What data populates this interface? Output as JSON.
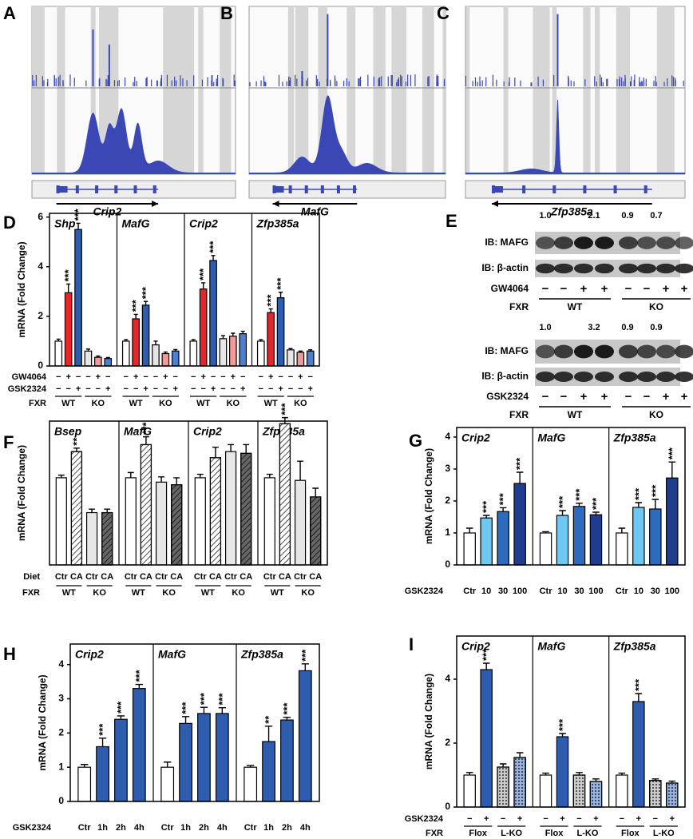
{
  "tracks": [
    {
      "panel": "A",
      "gene": "Crip2"
    },
    {
      "panel": "B",
      "gene": "MafG"
    },
    {
      "panel": "C",
      "gene": "Zfp385a"
    }
  ],
  "blot": {
    "panel": "E",
    "rows": [
      {
        "quant": [
          "1.0",
          "2.1",
          "0.9",
          "0.7"
        ],
        "bands": [
          "IB: MAFG",
          "IB: β-actin"
        ],
        "treatment": "GW4064",
        "signs": [
          "−",
          "−",
          "+",
          "+",
          "−",
          "−",
          "+",
          "+"
        ],
        "group_row": "FXR",
        "groups": [
          "WT",
          "KO"
        ]
      },
      {
        "quant": [
          "1.0",
          "3.2",
          "0.9",
          "0.9"
        ],
        "bands": [
          "IB: MAFG",
          "IB: β-actin"
        ],
        "treatment": "GSK2324",
        "signs": [
          "−",
          "−",
          "+",
          "+",
          "−",
          "−",
          "+",
          "+"
        ],
        "group_row": "FXR",
        "groups": [
          "WT",
          "KO"
        ]
      }
    ]
  },
  "chart_data": [
    {
      "type": "bar",
      "panel": "D",
      "ylabel": "mRNA (Fold Change)",
      "ylim": [
        0,
        6.15
      ],
      "yticks": [
        0,
        2,
        4,
        6
      ],
      "bar_styles": [
        {
          "color": "#ffffff"
        },
        {
          "color": "#e8262a"
        },
        {
          "color": "#2e5db0"
        },
        {
          "color": "#e6e6e6"
        },
        {
          "color": "#f29a9a"
        },
        {
          "color": "#4c7fd0"
        }
      ],
      "facets": [
        {
          "title": "Shp",
          "values": [
            1.0,
            2.95,
            5.5,
            0.6,
            0.35,
            0.3
          ],
          "errors": [
            0.08,
            0.35,
            0.25,
            0.08,
            0.05,
            0.04
          ],
          "stars": [
            null,
            "***",
            "***",
            null,
            null,
            null
          ]
        },
        {
          "title": "MafG",
          "values": [
            1.0,
            1.9,
            2.45,
            0.85,
            0.5,
            0.6
          ],
          "errors": [
            0.06,
            0.18,
            0.15,
            0.15,
            0.06,
            0.06
          ],
          "stars": [
            null,
            "***",
            "***",
            null,
            null,
            null
          ]
        },
        {
          "title": "Crip2",
          "values": [
            1.0,
            3.1,
            4.25,
            1.1,
            1.2,
            1.3
          ],
          "errors": [
            0.06,
            0.25,
            0.2,
            0.12,
            0.12,
            0.1
          ],
          "stars": [
            null,
            "***",
            "***",
            null,
            null,
            null
          ]
        },
        {
          "title": "Zfp385a",
          "values": [
            1.0,
            2.15,
            2.75,
            0.65,
            0.55,
            0.6
          ],
          "errors": [
            0.06,
            0.15,
            0.22,
            0.05,
            0.05,
            0.05
          ],
          "stars": [
            null,
            "***",
            "***",
            null,
            null,
            null
          ]
        }
      ],
      "rows": [
        {
          "label": "GW4064",
          "marks": [
            "−",
            "+",
            "−",
            "−",
            "+",
            "−"
          ]
        },
        {
          "label": "GSK2324",
          "marks": [
            "−",
            "−",
            "+",
            "−",
            "−",
            "+"
          ]
        }
      ],
      "group_label": "FXR",
      "groups": [
        "WT",
        "KO"
      ]
    },
    {
      "type": "bar",
      "panel": "F",
      "ylabel": "mRNA (Fold Change)",
      "ylim": [
        0,
        1.65
      ],
      "yticks": [],
      "bar_styles": [
        {
          "color": "#ffffff"
        },
        {
          "color": "#ffffff",
          "pattern": "hatch"
        },
        {
          "color": "#e6e6e6"
        },
        {
          "color": "#666666",
          "pattern": "hatch"
        }
      ],
      "facets": [
        {
          "title": "Bsep",
          "values": [
            1.0,
            1.3,
            0.6,
            0.6
          ],
          "errors": [
            0.03,
            0.04,
            0.04,
            0.04
          ],
          "stars": [
            null,
            "**",
            null,
            null
          ]
        },
        {
          "title": "MafG",
          "values": [
            1.0,
            1.38,
            0.95,
            0.92
          ],
          "errors": [
            0.06,
            0.09,
            0.06,
            0.08
          ],
          "stars": [
            null,
            "***",
            null,
            null
          ]
        },
        {
          "title": "Crip2",
          "values": [
            1.0,
            1.23,
            1.3,
            1.28
          ],
          "errors": [
            0.04,
            0.12,
            0.08,
            0.1
          ],
          "stars": [
            null,
            null,
            null,
            null
          ]
        },
        {
          "title": "Zfp385a",
          "values": [
            1.0,
            1.62,
            0.97,
            0.78
          ],
          "errors": [
            0.04,
            0.07,
            0.22,
            0.1
          ],
          "stars": [
            null,
            "***",
            null,
            null
          ]
        }
      ],
      "rows": [
        {
          "label": "Diet",
          "marks": [
            "Ctr",
            "CA",
            "Ctr",
            "CA"
          ]
        }
      ],
      "group_label": "FXR",
      "groups": [
        "WT",
        "KO"
      ]
    },
    {
      "type": "bar",
      "panel": "G",
      "ylabel": "mRNA (Fold Change)",
      "ylim": [
        0,
        4.3
      ],
      "yticks": [
        0,
        1,
        2,
        3,
        4
      ],
      "bar_styles": [
        {
          "color": "#ffffff"
        },
        {
          "color": "#6ec8f2"
        },
        {
          "color": "#2e6bbf"
        },
        {
          "color": "#1f3c8f"
        }
      ],
      "facets": [
        {
          "title": "Crip2",
          "values": [
            1.0,
            1.47,
            1.67,
            2.55
          ],
          "errors": [
            0.15,
            0.08,
            0.12,
            0.35
          ],
          "stars": [
            null,
            "***",
            "***",
            "***"
          ]
        },
        {
          "title": "MafG",
          "values": [
            1.0,
            1.55,
            1.83,
            1.57
          ],
          "errors": [
            0.04,
            0.15,
            0.1,
            0.08
          ],
          "stars": [
            null,
            "***",
            "***",
            "***"
          ]
        },
        {
          "title": "Zfp385a",
          "values": [
            1.0,
            1.8,
            1.75,
            2.72
          ],
          "errors": [
            0.15,
            0.15,
            0.3,
            0.5
          ],
          "stars": [
            null,
            "***",
            "***",
            "***"
          ]
        }
      ],
      "rows": [
        {
          "label": "GSK2324",
          "marks": [
            "Ctr",
            "10",
            "30",
            "100"
          ]
        }
      ]
    },
    {
      "type": "bar",
      "panel": "H",
      "ylabel": "mRNA (Fold Change)",
      "ylim": [
        0,
        4.6
      ],
      "yticks": [
        0,
        1,
        2,
        3,
        4
      ],
      "bar_styles": [
        {
          "color": "#ffffff"
        },
        {
          "color": "#2e5db0"
        },
        {
          "color": "#2e5db0"
        },
        {
          "color": "#2e5db0"
        }
      ],
      "facets": [
        {
          "title": "Crip2",
          "values": [
            1.0,
            1.6,
            2.4,
            3.3
          ],
          "errors": [
            0.08,
            0.25,
            0.1,
            0.12
          ],
          "stars": [
            null,
            "***",
            "***",
            "***"
          ]
        },
        {
          "title": "MafG",
          "values": [
            1.0,
            2.28,
            2.57,
            2.57
          ],
          "errors": [
            0.15,
            0.2,
            0.18,
            0.17
          ],
          "stars": [
            null,
            "***",
            "***",
            "***"
          ]
        },
        {
          "title": "Zfp385a",
          "values": [
            1.0,
            1.75,
            2.38,
            3.82
          ],
          "errors": [
            0.05,
            0.45,
            0.08,
            0.2
          ],
          "stars": [
            null,
            "**",
            "***",
            "***"
          ]
        }
      ],
      "rows": [
        {
          "label": "GSK2324",
          "marks": [
            "Ctr",
            "1h",
            "2h",
            "4h"
          ]
        }
      ]
    },
    {
      "type": "bar",
      "panel": "I",
      "ylabel": "mRNA (Fold Change)",
      "ylim": [
        0,
        5.35
      ],
      "yticks": [
        0,
        2,
        4
      ],
      "bar_styles": [
        {
          "color": "#ffffff"
        },
        {
          "color": "#2e5db0"
        },
        {
          "color": "#cccccc",
          "pattern": "dots"
        },
        {
          "color": "#9ab4e0",
          "pattern": "dots"
        }
      ],
      "facets": [
        {
          "title": "Crip2",
          "values": [
            1.0,
            4.3,
            1.25,
            1.55
          ],
          "errors": [
            0.08,
            0.2,
            0.1,
            0.15
          ],
          "stars": [
            null,
            "***",
            null,
            null
          ]
        },
        {
          "title": "MafG",
          "values": [
            1.0,
            2.2,
            1.0,
            0.8
          ],
          "errors": [
            0.06,
            0.1,
            0.08,
            0.08
          ],
          "stars": [
            null,
            "***",
            null,
            null
          ]
        },
        {
          "title": "Zfp385a",
          "values": [
            1.0,
            3.3,
            0.83,
            0.75
          ],
          "errors": [
            0.06,
            0.25,
            0.05,
            0.06
          ],
          "stars": [
            null,
            "***",
            null,
            null
          ]
        }
      ],
      "rows": [
        {
          "label": "GSK2324",
          "marks": [
            "−",
            "+",
            "−",
            "+"
          ]
        }
      ],
      "group_label": "FXR",
      "groups": [
        "Flox",
        "L-KO"
      ]
    }
  ]
}
